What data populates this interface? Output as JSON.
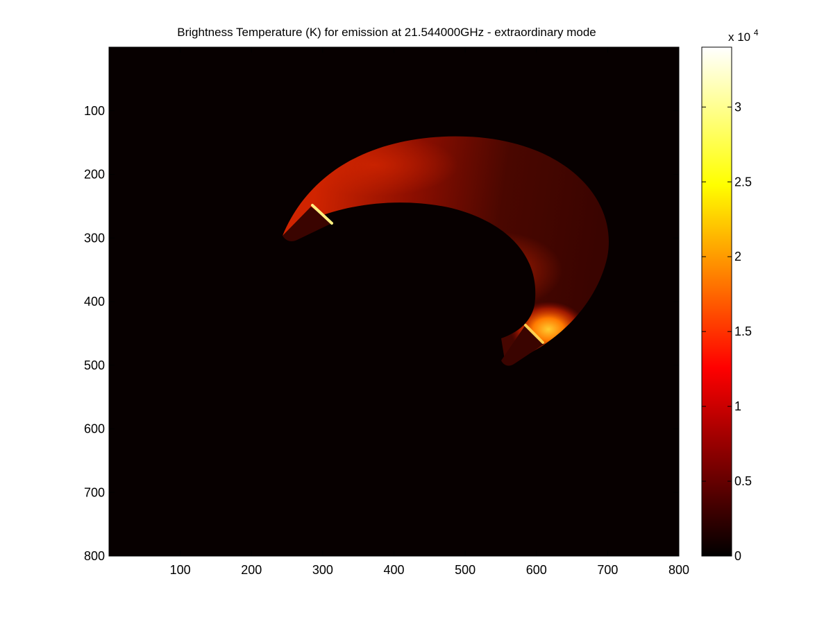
{
  "chart_data": {
    "type": "heatmap",
    "title": "Brightness Temperature (K) for emission at 21.544000GHz - extraordinary mode",
    "xlabel": "",
    "ylabel": "",
    "xlim": [
      0,
      800
    ],
    "ylim": [
      0,
      800
    ],
    "y_direction": "reversed",
    "xticks": [
      100,
      200,
      300,
      400,
      500,
      600,
      700,
      800
    ],
    "yticks": [
      100,
      200,
      300,
      400,
      500,
      600,
      700,
      800
    ],
    "grid": false,
    "colormap": "hot",
    "colorbar": {
      "range": [
        0,
        3.4
      ],
      "ticks": [
        0,
        0.5,
        1,
        1.5,
        2,
        2.5,
        3
      ],
      "tick_labels": [
        "0",
        "0.5",
        "1",
        "1.5",
        "2",
        "2.5",
        "3"
      ],
      "multiplier_base": "x 10",
      "multiplier_exponent": "4"
    },
    "features": [
      {
        "name": "upper-arc-bright-spot",
        "x": 305,
        "y": 265,
        "value": 3.3
      },
      {
        "name": "upper-arc-footpoint",
        "x": 255,
        "y": 302,
        "value": 0.4
      },
      {
        "name": "lower-arc-bright-spot",
        "x": 600,
        "y": 460,
        "value": 2.7
      },
      {
        "name": "lower-arc-footpoint",
        "x": 560,
        "y": 497,
        "value": 0.4
      },
      {
        "name": "loop-apex",
        "x": 700,
        "y": 320,
        "value": 0.5
      }
    ]
  }
}
